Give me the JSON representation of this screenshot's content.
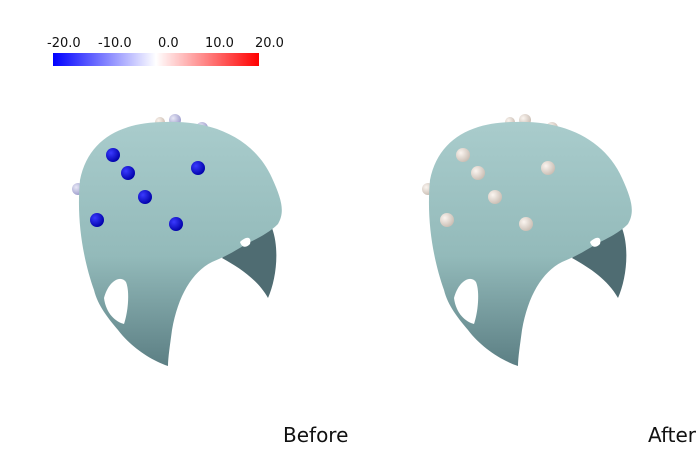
{
  "colorbar": {
    "ticks": [
      "-20.0",
      "-10.0",
      "0.0",
      "10.0",
      "20.0"
    ],
    "gradient_colors": [
      "#0000ff",
      "#ffffff",
      "#ff0000"
    ]
  },
  "views": [
    {
      "caption": "Before",
      "surface_color": "#9cc3c3"
    },
    {
      "caption": "After",
      "surface_color": "#9cc3c3"
    }
  ],
  "marker_colors": {
    "before_front": "#0b0bd2",
    "before_back": "#a8a8d8",
    "before_warm": "#e6d8cc",
    "after": "#e4dad2"
  }
}
